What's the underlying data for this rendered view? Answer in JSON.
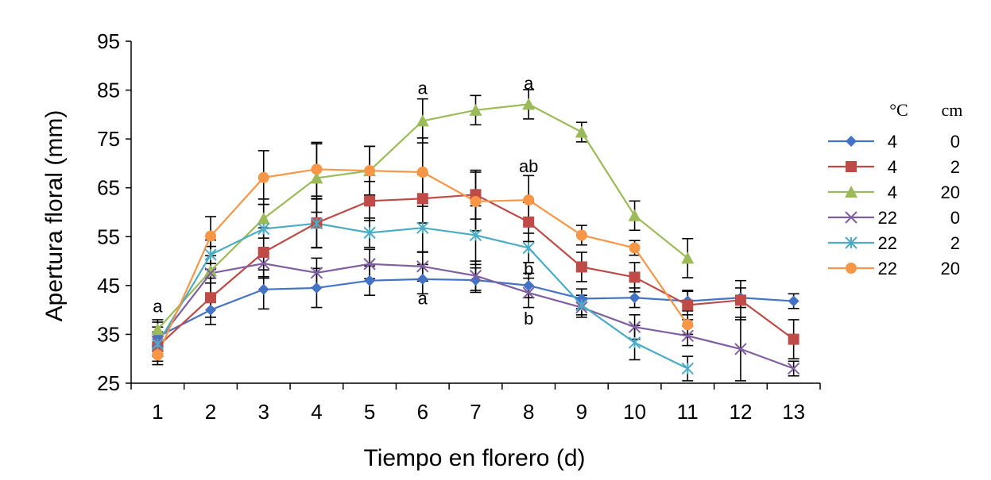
{
  "chart_data": {
    "type": "line",
    "title": "",
    "xlabel": "Tiempo en florero (d)",
    "ylabel": "Apertura floral (mm)",
    "ylim": [
      25,
      95
    ],
    "yticks": [
      "25",
      "35",
      "45",
      "55",
      "65",
      "75",
      "85",
      "95"
    ],
    "categories": [
      "1",
      "2",
      "3",
      "4",
      "5",
      "6",
      "7",
      "8",
      "9",
      "10",
      "11",
      "12",
      "13"
    ],
    "legend": {
      "placement": "right",
      "header_temp": "°C",
      "header_len": "cm"
    },
    "series": [
      {
        "temp": "4",
        "len": "0",
        "color": "#4472C4",
        "marker": "diamond",
        "x": [
          1,
          2,
          3,
          4,
          5,
          6,
          7,
          8,
          9,
          10,
          11,
          12,
          13
        ],
        "values": [
          34.5,
          40,
          44.2,
          44.5,
          46,
          46.3,
          46.1,
          45,
          42.3,
          42.5,
          41.8,
          42.5,
          41.8
        ],
        "errors": [
          3,
          3,
          4,
          4,
          3,
          3,
          2.5,
          2.5,
          2,
          2,
          2,
          2,
          1.5
        ]
      },
      {
        "temp": "4",
        "len": "2",
        "color": "#BE4B48",
        "marker": "square",
        "x": [
          1,
          2,
          3,
          4,
          5,
          6,
          7,
          8,
          9,
          10,
          11,
          12,
          13
        ],
        "values": [
          32.5,
          42.5,
          51.8,
          57.8,
          62.3,
          62.8,
          63.6,
          58,
          48.8,
          46.7,
          41,
          42,
          34
        ],
        "errors": [
          3,
          4,
          5,
          5,
          4,
          5,
          5,
          4,
          3,
          3,
          3,
          4,
          4
        ]
      },
      {
        "temp": "4",
        "len": "20",
        "color": "#9BBB59",
        "marker": "triangle",
        "x": [
          1,
          2,
          3,
          4,
          5,
          6,
          7,
          8,
          9,
          10,
          11
        ],
        "values": [
          36,
          48,
          58.7,
          67,
          68.5,
          78.7,
          80.9,
          82.1,
          76.4,
          59.3,
          50.6
        ],
        "errors": [
          2,
          5,
          4,
          7,
          5,
          4.5,
          3,
          3,
          2,
          3,
          4
        ]
      },
      {
        "temp": "22",
        "len": "0",
        "color": "#7F5FA1",
        "marker": "x",
        "x": [
          1,
          2,
          3,
          4,
          5,
          6,
          7,
          8,
          9,
          10,
          11,
          12,
          13
        ],
        "values": [
          33.5,
          47.5,
          49.5,
          47.6,
          49.4,
          48.9,
          47,
          43.5,
          40.5,
          36.5,
          34.7,
          32,
          28
        ],
        "errors": [
          3,
          2,
          3,
          3,
          3,
          3,
          3,
          3,
          2,
          2.5,
          2,
          6.5,
          1.5
        ]
      },
      {
        "temp": "22",
        "len": "2",
        "color": "#4BACC6",
        "marker": "star",
        "x": [
          1,
          2,
          3,
          4,
          5,
          6,
          7,
          8,
          9,
          10,
          11
        ],
        "values": [
          33,
          51.3,
          56.6,
          57.7,
          55.8,
          56.8,
          55.3,
          52.7,
          41,
          33.3,
          28
        ],
        "errors": [
          2,
          3,
          5,
          5,
          3,
          5,
          6,
          3,
          2,
          3.5,
          2.5
        ]
      },
      {
        "temp": "22",
        "len": "20",
        "color": "#F79646",
        "marker": "circle",
        "x": [
          1,
          2,
          3,
          4,
          5,
          6,
          7,
          8,
          9,
          10,
          11
        ],
        "values": [
          30.8,
          55.1,
          67.1,
          68.8,
          68.5,
          68.2,
          62.2,
          62.5,
          55.3,
          52.7,
          37
        ],
        "errors": [
          2,
          4,
          5.5,
          5.5,
          5,
          7,
          6,
          5,
          2,
          1.5,
          2
        ]
      }
    ],
    "annotations": [
      {
        "text": "a",
        "x": 1,
        "y": 40.8
      },
      {
        "text": "a",
        "x": 6,
        "y": 85.5
      },
      {
        "text": "a",
        "x": 8,
        "y": 86.5
      },
      {
        "text": "ab",
        "x": 8,
        "y": 69.5
      },
      {
        "text": "b",
        "x": 8,
        "y": 48.5
      },
      {
        "text": "a",
        "x": 6,
        "y": 42.5
      },
      {
        "text": "b",
        "x": 8,
        "y": 38.3
      }
    ]
  }
}
